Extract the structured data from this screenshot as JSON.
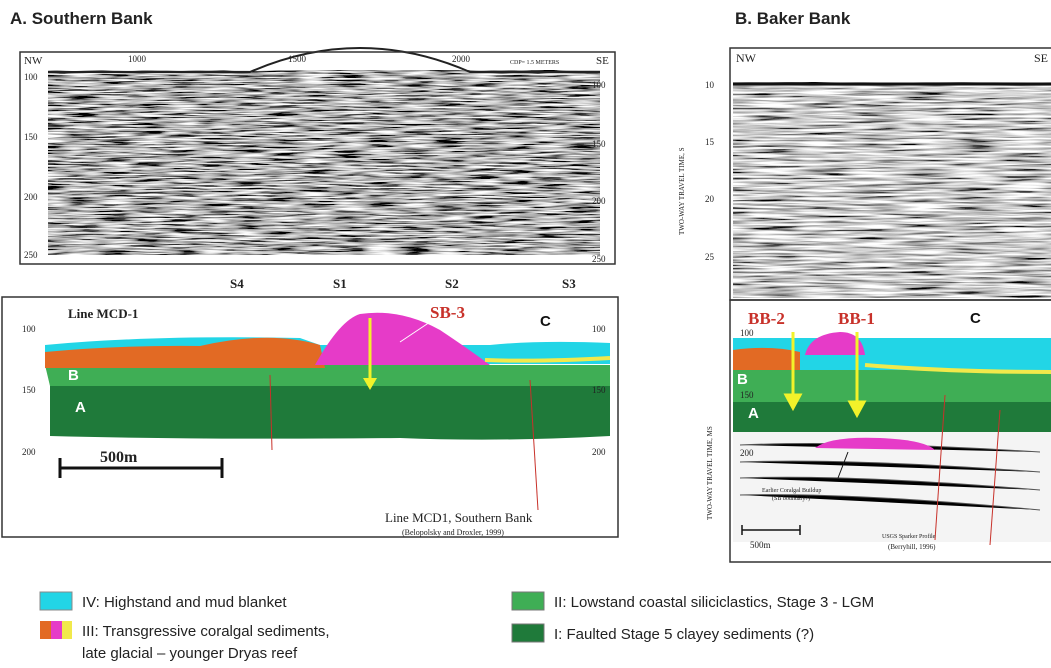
{
  "panel_a": {
    "title": "A. Southern Bank",
    "seismic": {
      "nw": "NW",
      "se": "SE",
      "cdp_ticks": [
        "1000",
        "1500",
        "2000"
      ],
      "cdp_note": "CDP= 1.5 METERS",
      "left_ticks": [
        "100",
        "150",
        "200",
        "250"
      ],
      "right_ticks": [
        "100",
        "150",
        "200",
        "250"
      ],
      "sites": [
        "S4",
        "S1",
        "S2",
        "S3"
      ]
    },
    "section": {
      "line": "Line MCD-1",
      "sequence_boundary": "SB-3",
      "units": [
        "C",
        "B",
        "A"
      ],
      "left_ticks": [
        "100",
        "150",
        "200"
      ],
      "right_ticks": [
        "100",
        "150",
        "200"
      ],
      "scale": "500m",
      "caption": "Line MCD1, Southern Bank",
      "source": "(Belopolsky and Droxler, 1999)"
    }
  },
  "panel_b": {
    "title": "B. Baker Bank",
    "seismic": {
      "nw": "NW",
      "se": "SE",
      "axis_label": "TWO-WAY TRAVEL TIME, S",
      "left_ticks": [
        "10",
        "15",
        "20",
        "25"
      ]
    },
    "section": {
      "axis_label": "TWO-WAY TRAVEL TIME, MS",
      "left_ticks": [
        "100",
        "150",
        "200"
      ],
      "boundaries": [
        "BB-2",
        "BB-1"
      ],
      "units": [
        "C",
        "B",
        "A"
      ],
      "buildup": [
        "Earlier Coralgal Buildup",
        "(SB boundary?)"
      ],
      "scale": "500m",
      "source": [
        "USGS Sparker Profile",
        "(Berryhill, 1996)"
      ]
    }
  },
  "legend": [
    {
      "lines": [
        "IV: Highstand and mud blanket"
      ]
    },
    {
      "lines": [
        "III: Transgressive coralgal sediments,",
        "late glacial – younger Dryas reef"
      ]
    },
    {
      "lines": [
        "II: Lowstand coastal siliciclastics, Stage 3 - LGM"
      ]
    },
    {
      "lines": [
        "I: Faulted Stage 5 clayey sediments (?)"
      ]
    }
  ]
}
